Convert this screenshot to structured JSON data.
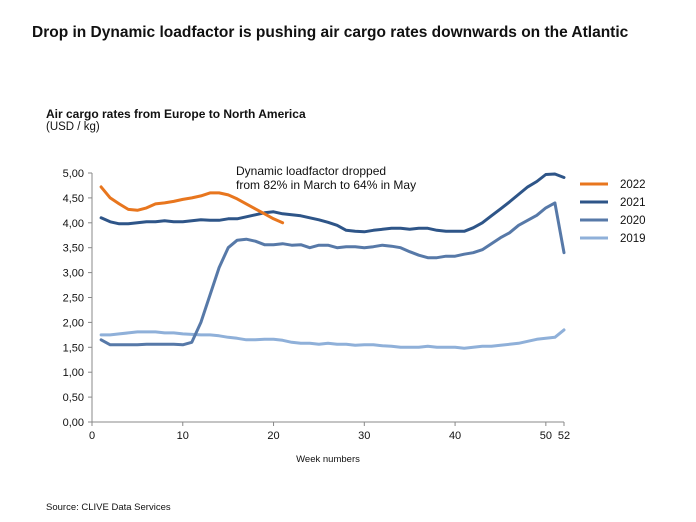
{
  "header": {
    "title": "Drop in Dynamic loadfactor is pushing air cargo rates downwards on the Atlantic"
  },
  "chart_data": {
    "type": "line",
    "subtitle": "Air cargo rates from Europe to North America",
    "ylabel": "(USD / kg)",
    "xlabel": "Week numbers",
    "ylim": [
      0,
      5
    ],
    "xlim": [
      0,
      52
    ],
    "x_ticks": [
      0,
      10,
      20,
      30,
      40,
      50,
      52
    ],
    "y_ticks": [
      "0,00",
      "0,50",
      "1,00",
      "1,50",
      "2,00",
      "2,50",
      "3,00",
      "3,50",
      "4,00",
      "4,50",
      "5,00"
    ],
    "y_tick_values": [
      0,
      0.5,
      1,
      1.5,
      2,
      2.5,
      3,
      3.5,
      4,
      4.5,
      5
    ],
    "grid": false,
    "legend_position": "right",
    "annotation": "Dynamic loadfactor dropped from 82% in March to 64% in May",
    "annotation_lines": [
      "Dynamic loadfactor dropped",
      "from 82% in March to 64% in May"
    ],
    "series": [
      {
        "name": "2022",
        "color": "#e8761e",
        "x": [
          1,
          2,
          3,
          4,
          5,
          6,
          7,
          8,
          9,
          10,
          11,
          12,
          13,
          14,
          15,
          16,
          17,
          18,
          19,
          20,
          21
        ],
        "values": [
          4.72,
          4.5,
          4.38,
          4.27,
          4.25,
          4.3,
          4.38,
          4.4,
          4.43,
          4.47,
          4.5,
          4.54,
          4.6,
          4.6,
          4.56,
          4.48,
          4.38,
          4.28,
          4.18,
          4.08,
          4.0
        ]
      },
      {
        "name": "2021",
        "color": "#2e5588",
        "x": [
          1,
          2,
          3,
          4,
          5,
          6,
          7,
          8,
          9,
          10,
          11,
          12,
          13,
          14,
          15,
          16,
          17,
          18,
          19,
          20,
          21,
          22,
          23,
          24,
          25,
          26,
          27,
          28,
          29,
          30,
          31,
          32,
          33,
          34,
          35,
          36,
          37,
          38,
          39,
          40,
          41,
          42,
          43,
          44,
          45,
          46,
          47,
          48,
          49,
          50,
          51,
          52
        ],
        "values": [
          4.1,
          4.02,
          3.98,
          3.98,
          4.0,
          4.02,
          4.02,
          4.04,
          4.02,
          4.02,
          4.04,
          4.06,
          4.05,
          4.05,
          4.08,
          4.08,
          4.12,
          4.16,
          4.2,
          4.22,
          4.18,
          4.16,
          4.14,
          4.1,
          4.06,
          4.01,
          3.95,
          3.85,
          3.83,
          3.82,
          3.85,
          3.87,
          3.89,
          3.89,
          3.87,
          3.89,
          3.89,
          3.85,
          3.83,
          3.83,
          3.83,
          3.9,
          4.0,
          4.14,
          4.28,
          4.42,
          4.57,
          4.72,
          4.83,
          4.97,
          4.98,
          4.91
        ]
      },
      {
        "name": "2020",
        "color": "#5779a8",
        "x": [
          1,
          2,
          3,
          4,
          5,
          6,
          7,
          8,
          9,
          10,
          11,
          12,
          13,
          14,
          15,
          16,
          17,
          18,
          19,
          20,
          21,
          22,
          23,
          24,
          25,
          26,
          27,
          28,
          29,
          30,
          31,
          32,
          33,
          34,
          35,
          36,
          37,
          38,
          39,
          40,
          41,
          42,
          43,
          44,
          45,
          46,
          47,
          48,
          49,
          50,
          51,
          52
        ],
        "values": [
          1.65,
          1.55,
          1.55,
          1.55,
          1.55,
          1.56,
          1.56,
          1.56,
          1.56,
          1.55,
          1.6,
          2.0,
          2.55,
          3.1,
          3.5,
          3.65,
          3.67,
          3.63,
          3.56,
          3.56,
          3.58,
          3.55,
          3.56,
          3.5,
          3.55,
          3.55,
          3.5,
          3.52,
          3.52,
          3.5,
          3.52,
          3.55,
          3.53,
          3.5,
          3.42,
          3.35,
          3.3,
          3.3,
          3.33,
          3.33,
          3.37,
          3.4,
          3.46,
          3.58,
          3.7,
          3.8,
          3.95,
          4.05,
          4.15,
          4.3,
          4.4,
          3.4
        ]
      },
      {
        "name": "2019",
        "color": "#8fb0d9",
        "x": [
          1,
          2,
          3,
          4,
          5,
          6,
          7,
          8,
          9,
          10,
          11,
          12,
          13,
          14,
          15,
          16,
          17,
          18,
          19,
          20,
          21,
          22,
          23,
          24,
          25,
          26,
          27,
          28,
          29,
          30,
          31,
          32,
          33,
          34,
          35,
          36,
          37,
          38,
          39,
          40,
          41,
          42,
          43,
          44,
          45,
          46,
          47,
          48,
          49,
          50,
          51,
          52
        ],
        "values": [
          1.75,
          1.75,
          1.77,
          1.79,
          1.81,
          1.81,
          1.81,
          1.79,
          1.79,
          1.77,
          1.76,
          1.75,
          1.75,
          1.73,
          1.7,
          1.68,
          1.65,
          1.65,
          1.66,
          1.66,
          1.64,
          1.6,
          1.58,
          1.58,
          1.56,
          1.58,
          1.56,
          1.56,
          1.54,
          1.55,
          1.55,
          1.53,
          1.52,
          1.5,
          1.5,
          1.5,
          1.52,
          1.5,
          1.5,
          1.5,
          1.48,
          1.5,
          1.52,
          1.52,
          1.54,
          1.56,
          1.58,
          1.62,
          1.66,
          1.68,
          1.7,
          1.85
        ]
      }
    ]
  },
  "source": "Source: CLIVE Data Services"
}
